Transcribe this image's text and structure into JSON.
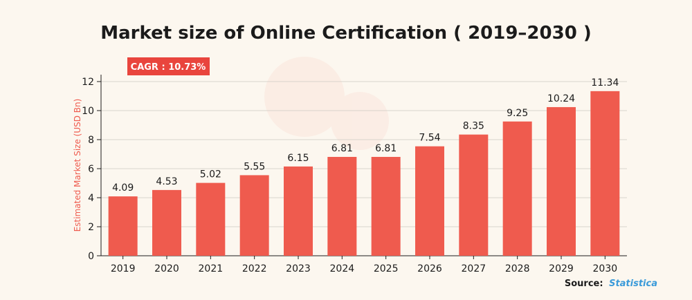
{
  "chart_data": {
    "type": "bar",
    "title": "Market size of Online Certification ( 2019–2030 )",
    "ylabel": "Estimated Market Size (USD Bn)",
    "xlabel": "",
    "ylim": [
      0,
      12
    ],
    "yticks": [
      0,
      2,
      4,
      6,
      8,
      10,
      12
    ],
    "grid": true,
    "categories": [
      "2019",
      "2020",
      "2021",
      "2022",
      "2023",
      "2024",
      "2025",
      "2026",
      "2027",
      "2028",
      "2029",
      "2030"
    ],
    "values": [
      4.09,
      4.53,
      5.02,
      5.55,
      6.15,
      6.81,
      6.81,
      7.54,
      8.35,
      9.25,
      10.24,
      11.34
    ],
    "data_labels": [
      "4.09",
      "4.53",
      "5.02",
      "5.55",
      "6.15",
      "6.81",
      "6.81",
      "7.54",
      "8.35",
      "9.25",
      "10.24",
      "11.34"
    ],
    "annotation": "CAGR : 10.73%",
    "source_prefix": "Source:",
    "source_name": "Statistica",
    "colors": {
      "bar": "#ef5b4e",
      "accent": "#e9453d",
      "source_link": "#3a9ad9",
      "background": "#fcf7ef"
    }
  }
}
